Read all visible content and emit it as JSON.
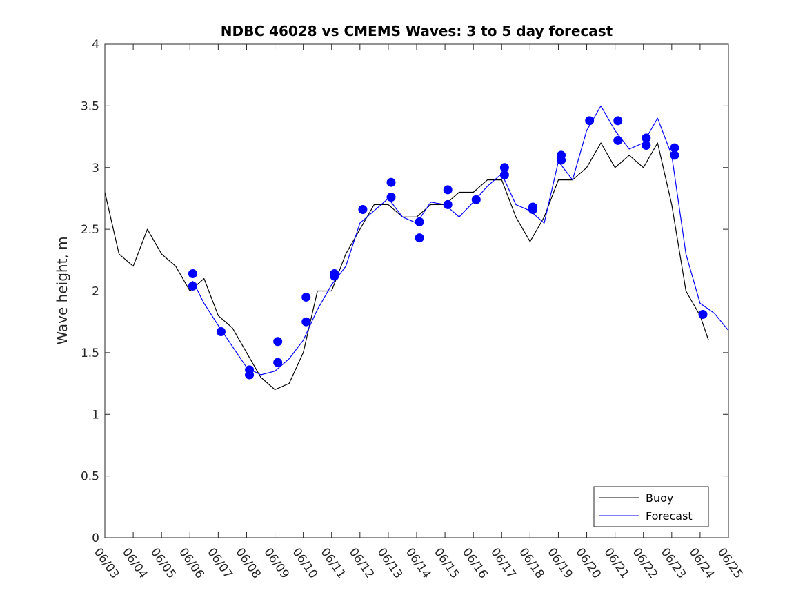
{
  "chart_data": {
    "type": "line",
    "title": "NDBC 46028 vs CMEMS Waves: 3 to 5 day forecast",
    "xlabel": "",
    "ylabel": "Wave height, m",
    "ylim": [
      0,
      4
    ],
    "yticks": [
      0,
      0.5,
      1,
      1.5,
      2,
      2.5,
      3,
      3.5,
      4
    ],
    "ytick_labels": [
      "0",
      "0.5",
      "1",
      "1.5",
      "2",
      "2.5",
      "3",
      "3.5",
      "4"
    ],
    "xlim_days": [
      3,
      25
    ],
    "xtick_labels": [
      "06/03",
      "06/04",
      "06/05",
      "06/06",
      "06/07",
      "06/08",
      "06/09",
      "06/10",
      "06/11",
      "06/12",
      "06/13",
      "06/14",
      "06/15",
      "06/16",
      "06/17",
      "06/18",
      "06/19",
      "06/20",
      "06/21",
      "06/22",
      "06/23",
      "06/24",
      "06/25"
    ],
    "grid": false,
    "legend_position": "bottom-right",
    "legend": [
      {
        "label": "Buoy",
        "color": "#000000"
      },
      {
        "label": "Forecast",
        "color": "#0000ff"
      }
    ],
    "colors": {
      "buoy": "#000000",
      "forecast": "#0000ff"
    },
    "series": [
      {
        "name": "Buoy",
        "x_day": [
          3.0,
          3.5,
          4.0,
          4.5,
          5.0,
          5.5,
          6.0,
          6.5,
          7.0,
          7.5,
          8.0,
          8.5,
          9.0,
          9.5,
          10.0,
          10.5,
          11.0,
          11.5,
          12.0,
          12.5,
          13.0,
          13.5,
          14.0,
          14.5,
          15.0,
          15.5,
          16.0,
          16.5,
          17.0,
          17.5,
          18.0,
          18.5,
          19.0,
          19.5,
          20.0,
          20.5,
          21.0,
          21.5,
          22.0,
          22.5,
          23.0,
          23.5,
          24.0,
          24.3
        ],
        "y": [
          2.8,
          2.3,
          2.2,
          2.5,
          2.3,
          2.2,
          2.0,
          2.1,
          1.8,
          1.7,
          1.5,
          1.3,
          1.2,
          1.25,
          1.5,
          2.0,
          2.0,
          2.3,
          2.5,
          2.7,
          2.7,
          2.6,
          2.6,
          2.7,
          2.7,
          2.8,
          2.8,
          2.9,
          2.9,
          2.6,
          2.4,
          2.6,
          2.9,
          2.9,
          3.0,
          3.2,
          3.0,
          3.1,
          3.0,
          3.2,
          2.7,
          2.0,
          1.8,
          1.6
        ]
      },
      {
        "name": "Forecast",
        "x_day": [
          6.1,
          6.5,
          7.0,
          7.5,
          8.0,
          8.5,
          9.0,
          9.5,
          10.0,
          10.5,
          11.0,
          11.5,
          12.0,
          12.5,
          13.0,
          13.5,
          14.0,
          14.5,
          15.0,
          15.5,
          16.0,
          16.5,
          17.0,
          17.5,
          18.0,
          18.5,
          19.0,
          19.5,
          20.0,
          20.5,
          21.0,
          21.5,
          22.0,
          22.5,
          23.0,
          23.5,
          24.0,
          24.5,
          25.0
        ],
        "y": [
          2.08,
          1.9,
          1.72,
          1.55,
          1.38,
          1.32,
          1.35,
          1.45,
          1.6,
          1.85,
          2.05,
          2.2,
          2.55,
          2.65,
          2.75,
          2.6,
          2.55,
          2.72,
          2.7,
          2.6,
          2.72,
          2.85,
          2.95,
          2.7,
          2.65,
          2.55,
          3.05,
          2.9,
          3.3,
          3.5,
          3.3,
          3.15,
          3.2,
          3.4,
          3.1,
          2.3,
          1.9,
          1.82,
          1.68
        ]
      }
    ],
    "forecast_markers": {
      "x_day": [
        6.1,
        6.1,
        7.1,
        8.1,
        8.1,
        9.1,
        9.1,
        10.1,
        10.1,
        11.1,
        11.1,
        12.1,
        13.1,
        13.1,
        14.1,
        14.1,
        15.1,
        15.1,
        16.1,
        17.1,
        17.1,
        18.1,
        18.1,
        19.1,
        19.1,
        20.1,
        21.1,
        21.1,
        22.1,
        22.1,
        23.1,
        23.1,
        24.1
      ],
      "y": [
        2.14,
        2.04,
        1.67,
        1.36,
        1.32,
        1.59,
        1.42,
        1.95,
        1.75,
        2.14,
        2.12,
        2.66,
        2.88,
        2.76,
        2.56,
        2.43,
        2.82,
        2.7,
        2.74,
        3.0,
        2.94,
        2.68,
        2.66,
        3.1,
        3.06,
        3.38,
        3.38,
        3.22,
        3.24,
        3.18,
        3.16,
        3.1,
        1.81
      ]
    }
  }
}
